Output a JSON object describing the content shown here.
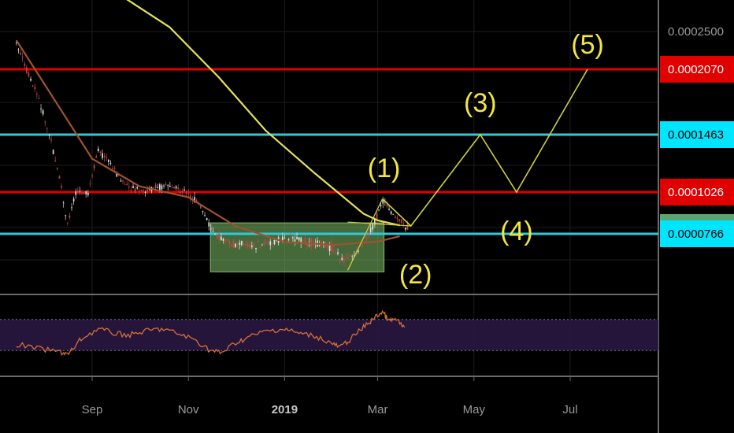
{
  "chart_data": {
    "type": "candlestick",
    "symbol_hint": "price chart with Elliott wave projection",
    "x_ticks": [
      {
        "label": "Sep",
        "date": "2018-09-01",
        "bold": false
      },
      {
        "label": "Nov",
        "date": "2018-11-01",
        "bold": false
      },
      {
        "label": "2019",
        "date": "2019-01-01",
        "bold": true
      },
      {
        "label": "Mar",
        "date": "2019-03-01",
        "bold": false
      },
      {
        "label": "May",
        "date": "2019-05-01",
        "bold": false
      },
      {
        "label": "Jul",
        "date": "2019-07-01",
        "bold": false
      }
    ],
    "price_labels": [
      {
        "text": "0.0002500",
        "value": 0.00025,
        "bg": "#000000",
        "fg": "#9a9a9a"
      },
      {
        "text": "0.0002070",
        "value": 0.000207,
        "bg": "#e00000",
        "fg": "#ffffff"
      },
      {
        "text": "0.0001463",
        "value": 0.0001463,
        "bg": "#00e5ff",
        "fg": "#000000"
      },
      {
        "text": "0.0001026",
        "value": 0.0001026,
        "bg": "#e00000",
        "fg": "#ffffff"
      },
      {
        "text": "0.0000812",
        "value": 8.12e-05,
        "bg": "#5aa870",
        "fg": "#ffffff"
      },
      {
        "text": "0.0000766",
        "value": 7.66e-05,
        "bg": "#00e5ff",
        "fg": "#000000"
      }
    ],
    "horizontal_lines": [
      {
        "value": 0.000207,
        "color": "#e00000"
      },
      {
        "value": 0.0001463,
        "color": "#33c8d8"
      },
      {
        "value": 0.0001026,
        "color": "#e00000"
      },
      {
        "value": 7.66e-05,
        "color": "#33c8d8"
      }
    ],
    "accumulation_box": {
      "from": "2018-11-15",
      "to": "2019-03-05",
      "low": 5.9e-05,
      "high": 8.4e-05,
      "color": "#7fbf6a"
    },
    "elliott_waves": [
      {
        "label": "(1)",
        "date": "2019-02-28",
        "value": 9.85e-05
      },
      {
        "label": "(2)",
        "date": "2019-03-20",
        "value": 7.9e-05
      },
      {
        "label": "(3)",
        "date": "2019-05-05",
        "value": 0.0001463
      },
      {
        "label": "(4)",
        "date": "2019-05-28",
        "value": 0.0001026
      },
      {
        "label": "(5)",
        "date": "2019-07-12",
        "value": 0.000207
      }
    ],
    "moving_averages": [
      {
        "color": "#e6e15a",
        "points": [
          [
            "2018-08-20",
            0.00032
          ],
          [
            "2018-09-20",
            0.00029
          ],
          [
            "2018-10-20",
            0.000255
          ],
          [
            "2018-11-20",
            0.0002
          ],
          [
            "2018-12-20",
            0.00015
          ],
          [
            "2019-01-20",
            0.000117
          ],
          [
            "2019-02-20",
            8.95e-05
          ],
          [
            "2019-03-01",
            8.55e-05
          ],
          [
            "2019-03-15",
            8.25e-05
          ]
        ]
      },
      {
        "color": "#a0522d",
        "points": [
          [
            "2018-07-15",
            0.00024
          ],
          [
            "2018-08-01",
            0.000195
          ],
          [
            "2018-09-01",
            0.000128
          ],
          [
            "2018-10-01",
            0.000107
          ],
          [
            "2018-11-01",
            9.95e-05
          ],
          [
            "2018-12-01",
            8.2e-05
          ],
          [
            "2019-01-01",
            7.28e-05
          ],
          [
            "2019-02-01",
            7.15e-05
          ],
          [
            "2019-03-01",
            7.3e-05
          ],
          [
            "2019-03-15",
            7.55e-05
          ]
        ]
      }
    ],
    "price_path": [
      [
        "2018-07-15",
        0.000235
      ],
      [
        "2018-07-22",
        0.000205
      ],
      [
        "2018-07-29",
        0.00018
      ],
      [
        "2018-08-05",
        0.000145
      ],
      [
        "2018-08-12",
        0.00011
      ],
      [
        "2018-08-16",
        8.2e-05
      ],
      [
        "2018-08-22",
        0.000105
      ],
      [
        "2018-08-29",
        0.0001
      ],
      [
        "2018-09-05",
        0.000135
      ],
      [
        "2018-09-12",
        0.000125
      ],
      [
        "2018-09-19",
        0.000112
      ],
      [
        "2018-09-26",
        0.000105
      ],
      [
        "2018-10-03",
        0.000103
      ],
      [
        "2018-10-10",
        0.000105
      ],
      [
        "2018-10-17",
        0.000108
      ],
      [
        "2018-10-24",
        0.000106
      ],
      [
        "2018-11-01",
        0.000101
      ],
      [
        "2018-11-08",
        9.5e-05
      ],
      [
        "2018-11-15",
        8.1e-05
      ],
      [
        "2018-11-22",
        7.4e-05
      ],
      [
        "2018-11-29",
        7.15e-05
      ],
      [
        "2018-12-06",
        7.25e-05
      ],
      [
        "2018-12-13",
        7.05e-05
      ],
      [
        "2018-12-20",
        7.2e-05
      ],
      [
        "2018-12-27",
        7.35e-05
      ],
      [
        "2019-01-03",
        7.45e-05
      ],
      [
        "2019-01-10",
        7.4e-05
      ],
      [
        "2019-01-17",
        7.25e-05
      ],
      [
        "2019-01-24",
        7.15e-05
      ],
      [
        "2019-01-31",
        7e-05
      ],
      [
        "2019-02-07",
        6.4e-05
      ],
      [
        "2019-02-14",
        6.7e-05
      ],
      [
        "2019-02-21",
        7.3e-05
      ],
      [
        "2019-02-28",
        8.6e-05
      ],
      [
        "2019-03-04",
        9.85e-05
      ],
      [
        "2019-03-09",
        9.1e-05
      ],
      [
        "2019-03-14",
        8.6e-05
      ],
      [
        "2019-03-20",
        8.12e-05
      ]
    ],
    "rsi": {
      "band": [
        30,
        70
      ],
      "points": [
        [
          "2018-07-15",
          38
        ],
        [
          "2018-07-30",
          32
        ],
        [
          "2018-08-12",
          28
        ],
        [
          "2018-08-17",
          25
        ],
        [
          "2018-08-25",
          45
        ],
        [
          "2018-09-05",
          58
        ],
        [
          "2018-09-15",
          52
        ],
        [
          "2018-09-25",
          50
        ],
        [
          "2018-10-05",
          55
        ],
        [
          "2018-10-15",
          58
        ],
        [
          "2018-10-25",
          52
        ],
        [
          "2018-11-05",
          44
        ],
        [
          "2018-11-15",
          30
        ],
        [
          "2018-11-22",
          27
        ],
        [
          "2018-12-01",
          40
        ],
        [
          "2018-12-10",
          48
        ],
        [
          "2018-12-20",
          55
        ],
        [
          "2019-01-01",
          58
        ],
        [
          "2019-01-10",
          52
        ],
        [
          "2019-01-20",
          49
        ],
        [
          "2019-01-30",
          40
        ],
        [
          "2019-02-05",
          34
        ],
        [
          "2019-02-12",
          45
        ],
        [
          "2019-02-20",
          60
        ],
        [
          "2019-02-27",
          72
        ],
        [
          "2019-03-04",
          80
        ],
        [
          "2019-03-08",
          68
        ],
        [
          "2019-03-12",
          70
        ],
        [
          "2019-03-18",
          60
        ]
      ]
    }
  }
}
